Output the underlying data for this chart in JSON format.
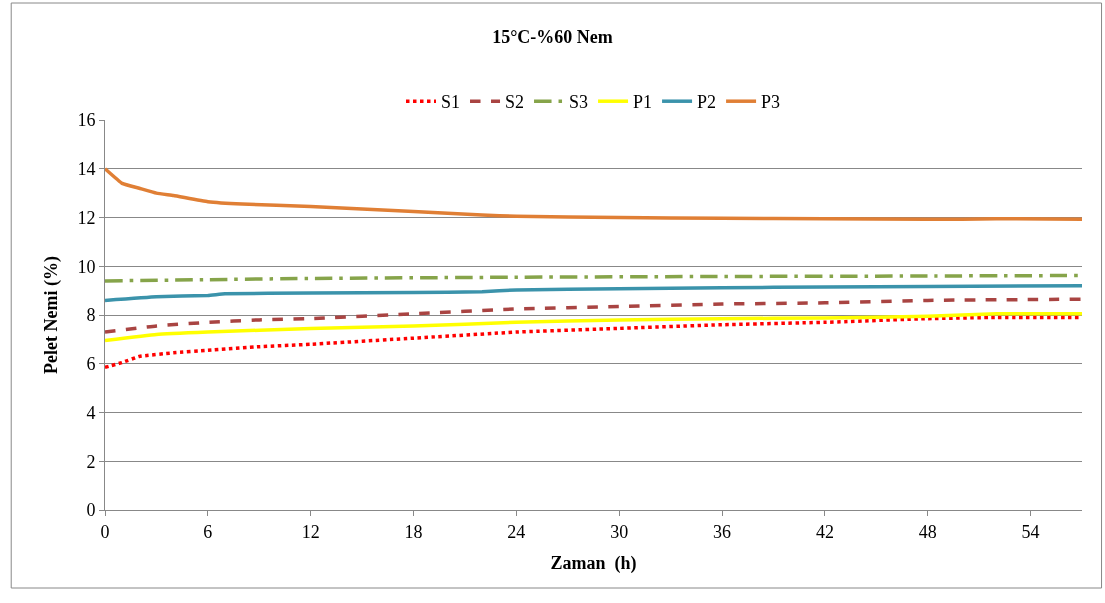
{
  "chart_data": {
    "type": "line",
    "title": "15°C-%60 Nem",
    "xlabel": "Zaman  (h)",
    "ylabel": "Pelet Nemi (%)",
    "xlim": [
      0,
      57
    ],
    "xticks": [
      0,
      6,
      12,
      18,
      24,
      30,
      36,
      42,
      48,
      54
    ],
    "ylim": [
      0,
      16
    ],
    "yticks": [
      0,
      2,
      4,
      6,
      8,
      10,
      12,
      14,
      16
    ],
    "grid": "y",
    "legend": "top",
    "marker": "none",
    "series": [
      {
        "name": "S1",
        "color": "#ff0000",
        "line_style": "dotted",
        "x": [
          0,
          1,
          2,
          4,
          6,
          9,
          12,
          18,
          24,
          30,
          36,
          42,
          48,
          52,
          57
        ],
        "values": [
          5.85,
          6.05,
          6.3,
          6.45,
          6.55,
          6.7,
          6.8,
          7.05,
          7.3,
          7.45,
          7.6,
          7.7,
          7.85,
          7.9,
          7.9
        ]
      },
      {
        "name": "S2",
        "color": "#a94442",
        "line_style": "dashed",
        "x": [
          0,
          3,
          6,
          9,
          12,
          18,
          24,
          30,
          36,
          42,
          48,
          57
        ],
        "values": [
          7.3,
          7.55,
          7.7,
          7.8,
          7.85,
          8.05,
          8.25,
          8.35,
          8.45,
          8.5,
          8.6,
          8.65
        ]
      },
      {
        "name": "S3",
        "color": "#86a44a",
        "line_style": "dashdot",
        "x": [
          0,
          6,
          12,
          24,
          36,
          48,
          57
        ],
        "values": [
          9.4,
          9.45,
          9.5,
          9.55,
          9.58,
          9.6,
          9.62
        ]
      },
      {
        "name": "P1",
        "color": "#ffff00",
        "line_style": "solid",
        "x": [
          0,
          3,
          6,
          12,
          18,
          24,
          30,
          36,
          42,
          48,
          52,
          57
        ],
        "values": [
          6.95,
          7.2,
          7.3,
          7.45,
          7.55,
          7.7,
          7.8,
          7.85,
          7.88,
          7.95,
          8.05,
          8.05
        ]
      },
      {
        "name": "P2",
        "color": "#3b93ab",
        "line_style": "solid",
        "x": [
          0,
          3,
          6,
          7,
          12,
          18,
          22,
          24,
          30,
          36,
          42,
          48,
          57
        ],
        "values": [
          8.6,
          8.75,
          8.8,
          8.87,
          8.9,
          8.92,
          8.95,
          9.03,
          9.08,
          9.12,
          9.15,
          9.17,
          9.2
        ]
      },
      {
        "name": "P3",
        "color": "#e07f35",
        "line_style": "solid",
        "x": [
          0,
          1,
          2,
          3,
          4,
          6,
          8,
          12,
          18,
          22,
          24,
          30,
          36,
          42,
          48,
          50,
          52,
          57
        ],
        "values": [
          14.0,
          13.4,
          13.2,
          13.0,
          12.9,
          12.65,
          12.55,
          12.45,
          12.25,
          12.1,
          12.05,
          12.0,
          11.97,
          11.95,
          11.93,
          11.93,
          11.95,
          11.93
        ]
      }
    ]
  }
}
